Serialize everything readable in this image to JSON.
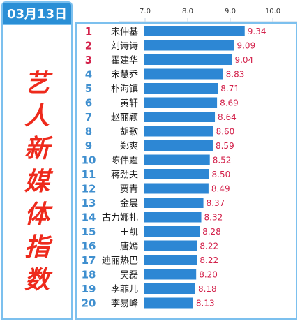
{
  "header": {
    "date": "03月13日"
  },
  "side_title": [
    "艺",
    "人",
    "新",
    "媒",
    "体",
    "指",
    "数"
  ],
  "colors": {
    "accent": "#2a8fd6",
    "bar_fill": "#2d87d4",
    "title_red": "#ee2a1c",
    "rank_top": "#d3224b",
    "rank_rest": "#3f8fcf",
    "value_text": "#d3224b"
  },
  "chart_data": {
    "type": "bar",
    "orientation": "horizontal",
    "xlim": [
      7.0,
      10.0
    ],
    "ticks": [
      "7.0",
      "8.0",
      "9.0",
      "10.0"
    ],
    "grid": false,
    "ranks": [
      "1",
      "2",
      "3",
      "4",
      "5",
      "6",
      "7",
      "8",
      "9",
      "10",
      "11",
      "12",
      "13",
      "14",
      "15",
      "16",
      "17",
      "18",
      "19",
      "20"
    ],
    "categories": [
      "宋仲基",
      "刘诗诗",
      "霍建华",
      "宋慧乔",
      "朴海镇",
      "黄轩",
      "赵丽颖",
      "胡歌",
      "郑爽",
      "陈伟霆",
      "蒋劲夫",
      "贾青",
      "金晨",
      "古力娜扎",
      "王凯",
      "唐嫣",
      "迪丽热巴",
      "吴磊",
      "李菲儿",
      "李易峰"
    ],
    "value_labels": [
      "9.34",
      "9.09",
      "9.04",
      "8.83",
      "8.71",
      "8.69",
      "8.64",
      "8.60",
      "8.59",
      "8.52",
      "8.50",
      "8.49",
      "8.37",
      "8.32",
      "8.28",
      "8.22",
      "8.22",
      "8.20",
      "8.18",
      "8.13"
    ],
    "values": [
      9.34,
      9.09,
      9.04,
      8.83,
      8.71,
      8.69,
      8.64,
      8.6,
      8.59,
      8.52,
      8.5,
      8.49,
      8.37,
      8.32,
      8.28,
      8.22,
      8.22,
      8.2,
      8.18,
      8.13
    ]
  }
}
